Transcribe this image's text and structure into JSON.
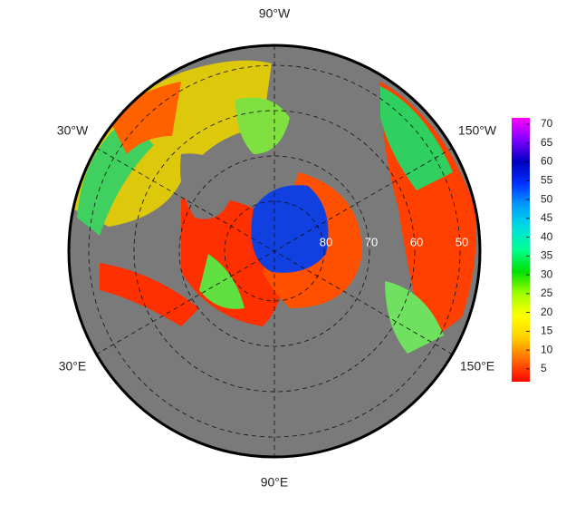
{
  "map": {
    "longitude_labels": [
      "90°W",
      "30°W",
      "150°W",
      "30°E",
      "150°E",
      "90°E"
    ],
    "latitude_labels": [
      "80",
      "70",
      "60",
      "50"
    ],
    "colorbar": {
      "range": [
        1.6,
        71.7
      ],
      "ticks": [
        5,
        10,
        15,
        20,
        25,
        30,
        35,
        40,
        45,
        50,
        55,
        60,
        65,
        70
      ],
      "colors": [
        "#ff0000",
        "#ff6a00",
        "#ffd000",
        "#ffff00",
        "#a0ff00",
        "#00e000",
        "#00ff90",
        "#00e0e0",
        "#00a0ff",
        "#0030ff",
        "#0000c0",
        "#8000ff",
        "#ff00ff"
      ]
    }
  }
}
